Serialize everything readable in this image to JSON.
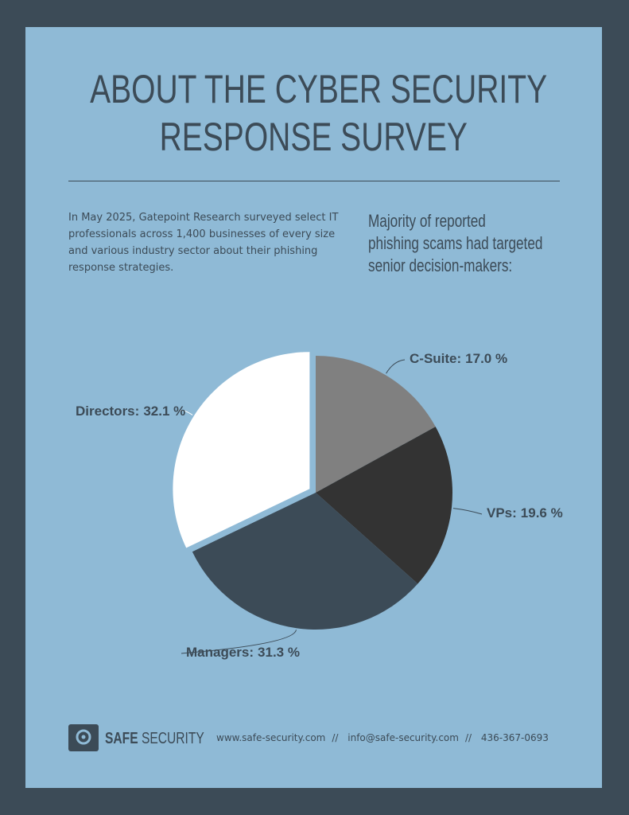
{
  "title": [
    "ABOUT THE CYBER SECURITY",
    "RESPONSE SURVEY"
  ],
  "intro": "In May 2025, Gatepoint Research  surveyed select IT professionals across 1,400 businesses of every size and various industry sector about their phishing response strategies.",
  "chart_data": {
    "type": "pie",
    "title": [
      "Majority of reported",
      "phishing scams had targeted",
      "senior decision-makers:"
    ],
    "categories": [
      "C-Suite:",
      "VPs:",
      "Managers:",
      "Directors:"
    ],
    "values": [
      17.0,
      19.6,
      31.3,
      32.1
    ],
    "value_labels": [
      "17.0 %",
      "19.6 %",
      "31.3 %",
      "32.1 %"
    ],
    "colors": [
      "#808080",
      "#333333",
      "#3c4b57",
      "#ffffff"
    ]
  },
  "footer": {
    "brand_bold": "SAFE",
    "brand": "SECURITY",
    "separator": "//",
    "contacts": [
      "www.safe-security.com",
      "info@safe-security.com",
      "436-367-0693"
    ]
  }
}
